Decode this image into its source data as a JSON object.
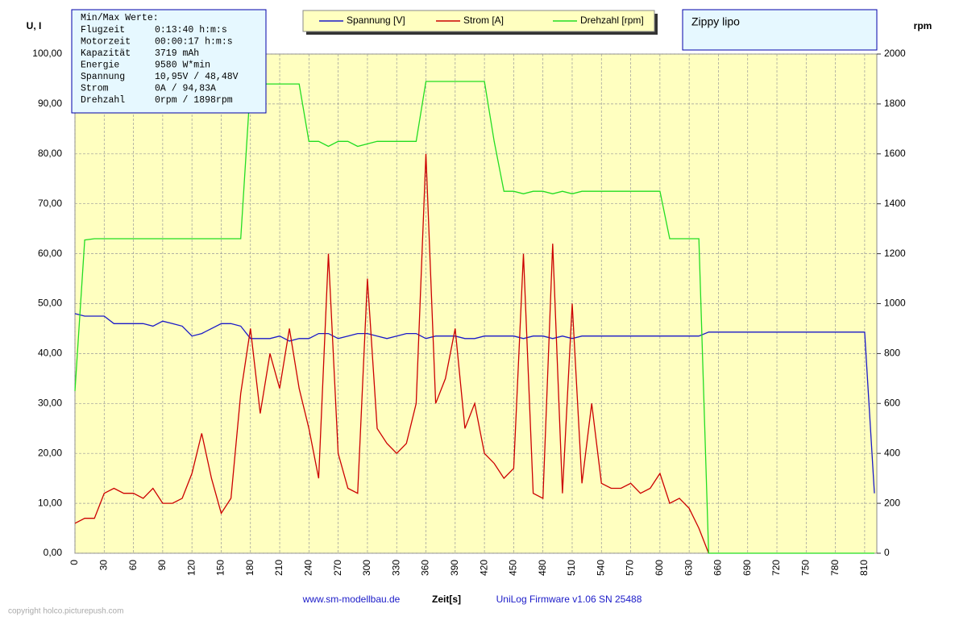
{
  "chart_data": {
    "type": "line",
    "title": "Zippy lipo",
    "y_label": "U, I",
    "y2_label": "rpm",
    "x_label": "Zeit[s]",
    "footer_left": "www.sm-modellbau.de",
    "footer_right": "UniLog Firmware v1.06 SN 25488",
    "copyright": "copyright holco.picturepush.com",
    "info": {
      "title": "Min/Max Werte:",
      "rows": [
        [
          "Flugzeit",
          "0:13:40 h:m:s"
        ],
        [
          "Motorzeit",
          "00:00:17 h:m:s"
        ],
        [
          "Kapazität",
          "3719 mAh"
        ],
        [
          "Energie",
          "9580 W*min"
        ],
        [
          "Spannung",
          "10,95V / 48,48V"
        ],
        [
          "Strom",
          "0A / 94,83A"
        ],
        [
          "Drehzahl",
          "0rpm / 1898rpm"
        ]
      ]
    },
    "x": [
      0,
      10,
      20,
      30,
      40,
      50,
      60,
      70,
      80,
      90,
      100,
      110,
      120,
      130,
      140,
      150,
      160,
      170,
      180,
      190,
      200,
      210,
      220,
      230,
      240,
      250,
      260,
      270,
      280,
      290,
      300,
      310,
      320,
      330,
      340,
      350,
      360,
      370,
      380,
      390,
      400,
      410,
      420,
      430,
      440,
      450,
      460,
      470,
      480,
      490,
      500,
      510,
      520,
      530,
      540,
      550,
      560,
      570,
      580,
      590,
      600,
      610,
      620,
      630,
      640,
      650,
      660,
      670,
      680,
      690,
      700,
      710,
      720,
      730,
      740,
      750,
      760,
      770,
      780,
      790,
      800,
      810,
      820
    ],
    "series": [
      {
        "name": "Spannung [V]",
        "color": "#1a1ac8",
        "axis": "y",
        "values": [
          48,
          47.5,
          47.5,
          47.5,
          46,
          46,
          46,
          46,
          45.5,
          46.5,
          46,
          45.5,
          43.5,
          44,
          45,
          46,
          46,
          45.5,
          43,
          43,
          43,
          43.5,
          42.5,
          43,
          43,
          44,
          44,
          43,
          43.5,
          44,
          44,
          43.5,
          43,
          43.5,
          44,
          44,
          43,
          43.5,
          43.5,
          43.5,
          43,
          43,
          43.5,
          43.5,
          43.5,
          43.5,
          43,
          43.5,
          43.5,
          43,
          43.5,
          43,
          43.5,
          43.5,
          43.5,
          43.5,
          43.5,
          43.5,
          43.5,
          43.5,
          43.5,
          43.5,
          43.5,
          43.5,
          43.5,
          44.3,
          44.3,
          44.3,
          44.3,
          44.3,
          44.3,
          44.3,
          44.3,
          44.3,
          44.3,
          44.3,
          44.3,
          44.3,
          44.3,
          44.3,
          44.3,
          44.3,
          12
        ]
      },
      {
        "name": "Strom [A]",
        "color": "#cc0000",
        "axis": "y",
        "values": [
          6,
          7,
          7,
          12,
          13,
          12,
          12,
          11,
          13,
          10,
          10,
          11,
          16,
          24,
          15,
          8,
          11,
          32,
          45,
          28,
          40,
          33,
          45,
          33,
          25,
          15,
          60,
          20,
          13,
          12,
          55,
          25,
          22,
          20,
          22,
          30,
          80,
          30,
          35,
          45,
          25,
          30,
          20,
          18,
          15,
          17,
          60,
          12,
          11,
          62,
          12,
          50,
          14,
          30,
          14,
          13,
          13,
          14,
          12,
          13,
          16,
          10,
          11,
          9,
          5,
          0,
          null,
          null,
          null,
          null,
          null,
          null,
          null,
          null,
          null,
          null,
          null,
          null,
          null,
          null,
          null,
          null,
          null
        ]
      },
      {
        "name": "Drehzahl [rpm]",
        "color": "#22dd22",
        "axis": "y2",
        "values": [
          650,
          1255,
          1260,
          1260,
          1260,
          1260,
          1260,
          1260,
          1260,
          1260,
          1260,
          1260,
          1260,
          1260,
          1260,
          1260,
          1260,
          1260,
          1880,
          1880,
          1880,
          1880,
          1880,
          1880,
          1650,
          1650,
          1630,
          1650,
          1650,
          1630,
          1640,
          1650,
          1650,
          1650,
          1650,
          1650,
          1890,
          1890,
          1890,
          1890,
          1890,
          1890,
          1890,
          1650,
          1450,
          1450,
          1440,
          1450,
          1450,
          1440,
          1450,
          1440,
          1450,
          1450,
          1450,
          1450,
          1450,
          1450,
          1450,
          1450,
          1450,
          1260,
          1260,
          1260,
          1260,
          0,
          0,
          0,
          0,
          0,
          0,
          0,
          0,
          0,
          0,
          0,
          0,
          0,
          0,
          0,
          0,
          0,
          0
        ]
      }
    ],
    "xlim": [
      0,
      820
    ],
    "xticks": [
      0,
      30,
      60,
      90,
      120,
      150,
      180,
      210,
      240,
      270,
      300,
      330,
      360,
      390,
      420,
      450,
      480,
      510,
      540,
      570,
      600,
      630,
      660,
      690,
      720,
      750,
      780,
      810
    ],
    "ylim": [
      0,
      100
    ],
    "yticks": [
      {
        "value": 0,
        "label": "0,00"
      },
      {
        "value": 10,
        "label": "10,00"
      },
      {
        "value": 20,
        "label": "20,00"
      },
      {
        "value": 30,
        "label": "30,00"
      },
      {
        "value": 40,
        "label": "40,00"
      },
      {
        "value": 50,
        "label": "50,00"
      },
      {
        "value": 60,
        "label": "60,00"
      },
      {
        "value": 70,
        "label": "70,00"
      },
      {
        "value": 80,
        "label": "80,00"
      },
      {
        "value": 90,
        "label": "90,00"
      },
      {
        "value": 100,
        "label": "100,00"
      }
    ],
    "y2lim": [
      0,
      2000
    ],
    "y2ticks": [
      0,
      200,
      400,
      600,
      800,
      1000,
      1200,
      1400,
      1600,
      1800,
      2000
    ],
    "grid": true
  }
}
